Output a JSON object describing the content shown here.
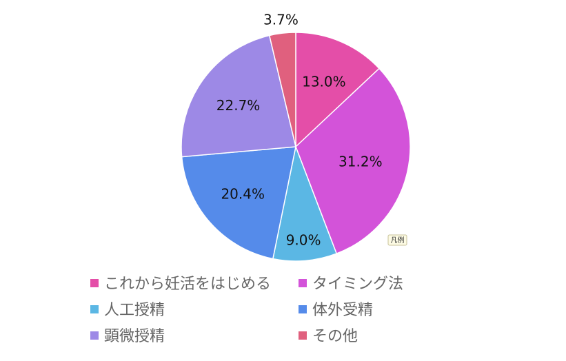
{
  "chart_data": {
    "type": "pie",
    "title": "",
    "start_angle_deg": 0,
    "direction": "clockwise",
    "slices": [
      {
        "name": "これから妊活をはじめる",
        "value": 13.0,
        "label": "13.0%",
        "color": "#e44ea8"
      },
      {
        "name": "タイミング法",
        "value": 31.2,
        "label": "31.2%",
        "color": "#d353d9"
      },
      {
        "name": "人工授精",
        "value": 9.0,
        "label": "9.0%",
        "color": "#5bb7e4"
      },
      {
        "name": "体外受精",
        "value": 20.4,
        "label": "20.4%",
        "color": "#558bea"
      },
      {
        "name": "顕微授精",
        "value": 22.7,
        "label": "22.7%",
        "color": "#9d89e6"
      },
      {
        "name": "その他",
        "value": 3.7,
        "label": "3.7%",
        "color": "#e0607e"
      }
    ],
    "legend": {
      "position": "bottom",
      "columns": 2
    }
  },
  "tooltip": {
    "text": "凡例"
  }
}
